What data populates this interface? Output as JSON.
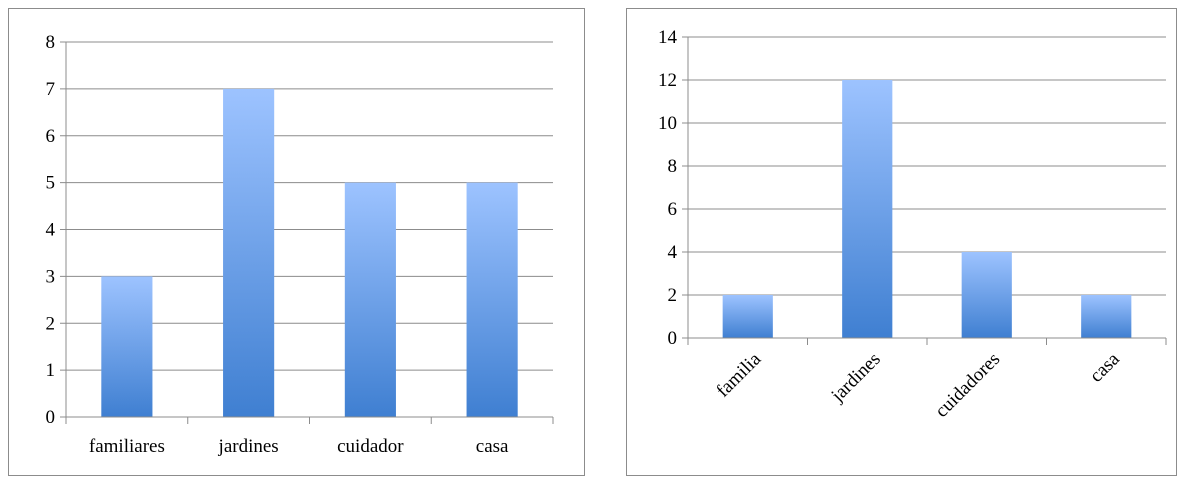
{
  "chart_data": [
    {
      "type": "bar",
      "categories": [
        "familiares",
        "jardines",
        "cuidador",
        "casa"
      ],
      "values": [
        3,
        7,
        5,
        5
      ],
      "ylim": [
        0,
        8
      ],
      "yticks": [
        0,
        1,
        2,
        3,
        4,
        5,
        6,
        7,
        8
      ],
      "grid": true,
      "legend": "none",
      "bar_color_top": "#9dc3ff",
      "bar_color_bottom": "#3f7fd1"
    },
    {
      "type": "bar",
      "categories": [
        "familia",
        "jardines",
        "cuidadores",
        "casa"
      ],
      "values": [
        2,
        12,
        4,
        2
      ],
      "ylim": [
        0,
        14
      ],
      "yticks": [
        0,
        2,
        4,
        6,
        8,
        10,
        12,
        14
      ],
      "grid": true,
      "legend": "none",
      "bar_color_top": "#9dc3ff",
      "bar_color_bottom": "#3f7fd1"
    }
  ]
}
